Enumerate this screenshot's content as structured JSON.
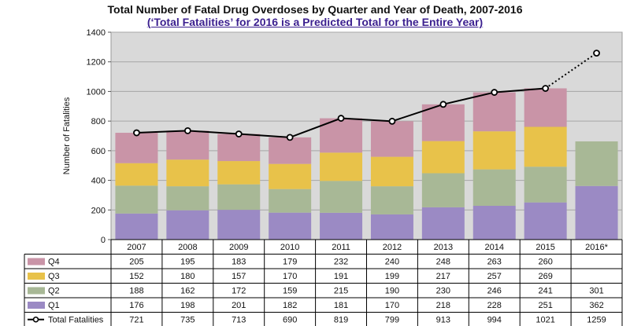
{
  "chart_data": {
    "type": "bar",
    "title": "Total Number of Fatal Drug Overdoses by Quarter and Year of Death, 2007-2016",
    "subtitle": "(‘Total Fatalities’ for 2016 is a Predicted Total for the Entire Year)",
    "ylabel": "Number of Fatalities",
    "ylim": [
      0,
      1400
    ],
    "yticks": [
      0,
      200,
      400,
      600,
      800,
      1000,
      1200,
      1400
    ],
    "grid": true,
    "stacked": true,
    "categories": [
      "2007",
      "2008",
      "2009",
      "2010",
      "2011",
      "2012",
      "2013",
      "2014",
      "2015",
      "2016*"
    ],
    "series": [
      {
        "name": "Q1",
        "color": "#9b8ac4",
        "values": [
          176,
          198,
          201,
          182,
          181,
          170,
          218,
          228,
          251,
          362
        ]
      },
      {
        "name": "Q2",
        "color": "#a8b896",
        "values": [
          188,
          162,
          172,
          159,
          215,
          190,
          230,
          246,
          241,
          301
        ]
      },
      {
        "name": "Q3",
        "color": "#e8c24a",
        "values": [
          152,
          180,
          157,
          170,
          191,
          199,
          217,
          257,
          269,
          null
        ]
      },
      {
        "name": "Q4",
        "color": "#c994a7",
        "values": [
          205,
          195,
          183,
          179,
          232,
          240,
          248,
          263,
          260,
          null
        ]
      }
    ],
    "line": {
      "name": "Total Fatalities",
      "color": "#000000",
      "values": [
        721,
        735,
        713,
        690,
        819,
        799,
        913,
        994,
        1021,
        1259
      ],
      "dotted_last_segment": true
    },
    "table_rows_order": [
      "Q4",
      "Q3",
      "Q2",
      "Q1",
      "Total Fatalities"
    ]
  }
}
